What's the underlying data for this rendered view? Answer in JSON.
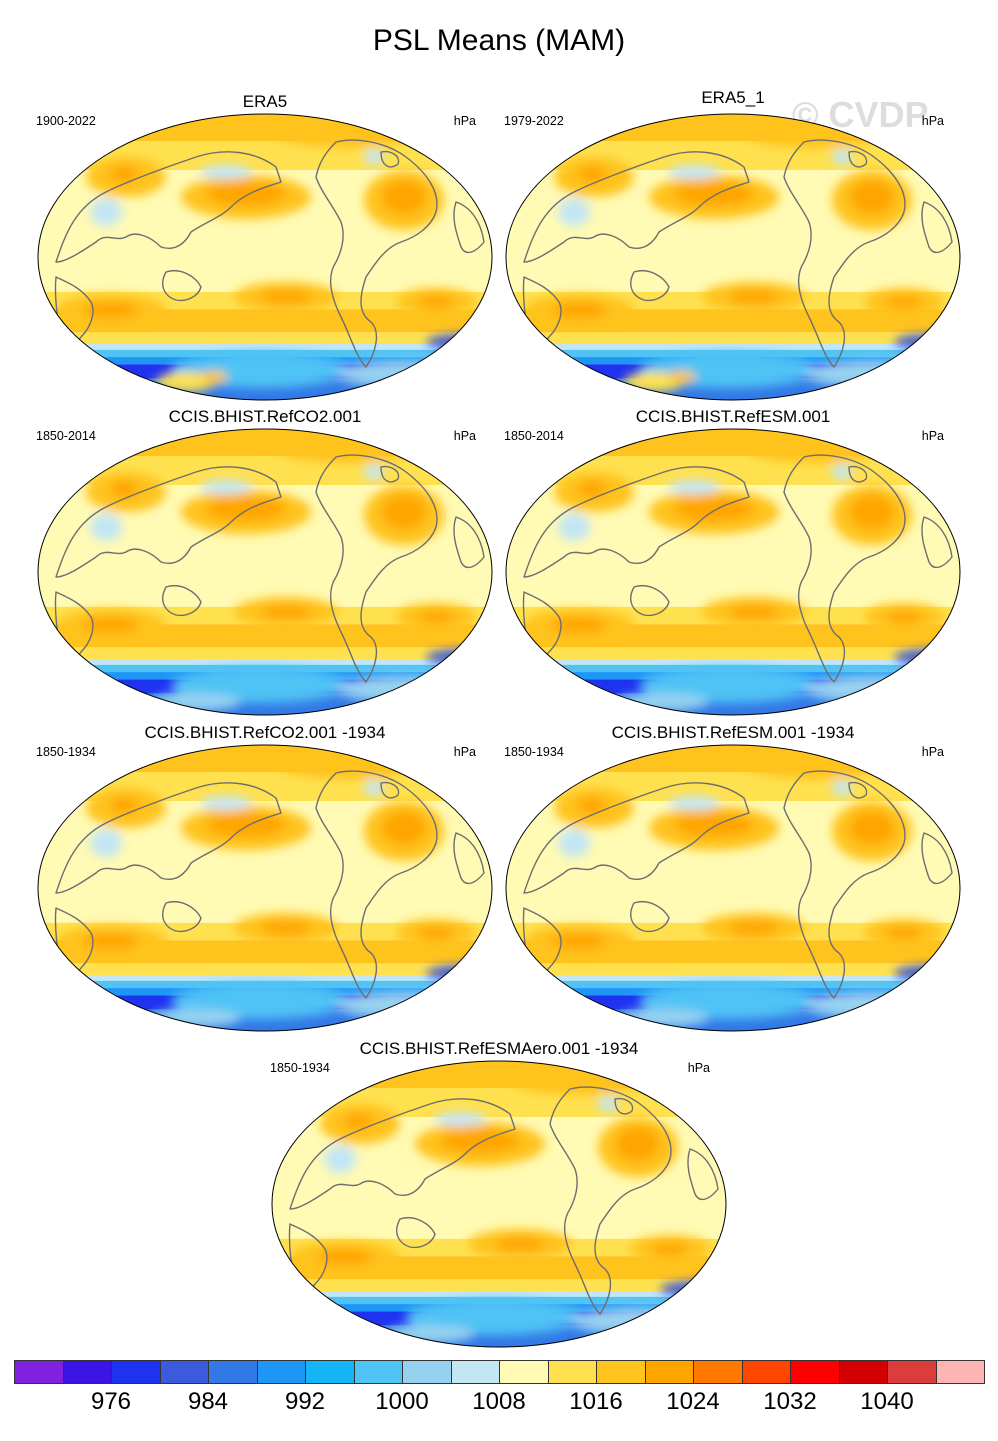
{
  "title": "PSL Means (MAM)",
  "watermark": "© CVDP",
  "panels": [
    {
      "title": "ERA5",
      "period": "1900-2022",
      "units": "hPa",
      "variant": "obs"
    },
    {
      "title": "ERA5_1",
      "period": "1979-2022",
      "units": "hPa",
      "variant": "obs"
    },
    {
      "title": "CCIS.BHIST.RefCO2.001",
      "period": "1850-2014",
      "units": "hPa",
      "variant": "model"
    },
    {
      "title": "CCIS.BHIST.RefESM.001",
      "period": "1850-2014",
      "units": "hPa",
      "variant": "model"
    },
    {
      "title": "CCIS.BHIST.RefCO2.001 -1934",
      "period": "1850-1934",
      "units": "hPa",
      "variant": "model"
    },
    {
      "title": "CCIS.BHIST.RefESM.001 -1934",
      "period": "1850-1934",
      "units": "hPa",
      "variant": "model"
    },
    {
      "title": "CCIS.BHIST.RefESMAero.001 -1934",
      "period": "1850-1934",
      "units": "hPa",
      "variant": "model"
    }
  ],
  "colorbar": {
    "colors": [
      "#8020e0",
      "#3c14e6",
      "#1e32f0",
      "#3c5adc",
      "#3278e6",
      "#1e96f5",
      "#14b4f5",
      "#50c3f5",
      "#96d2f0",
      "#c3e6f5",
      "#fffab4",
      "#ffe150",
      "#ffc31e",
      "#ffa500",
      "#ff7800",
      "#ff4600",
      "#ff0000",
      "#d20000",
      "#dc3c3c",
      "#ffb4b4"
    ],
    "labels": [
      "976",
      "984",
      "992",
      "1000",
      "1008",
      "1016",
      "1024",
      "1032",
      "1040"
    ],
    "label_boundary_index": [
      2,
      4,
      6,
      8,
      10,
      12,
      14,
      16,
      18
    ]
  }
}
